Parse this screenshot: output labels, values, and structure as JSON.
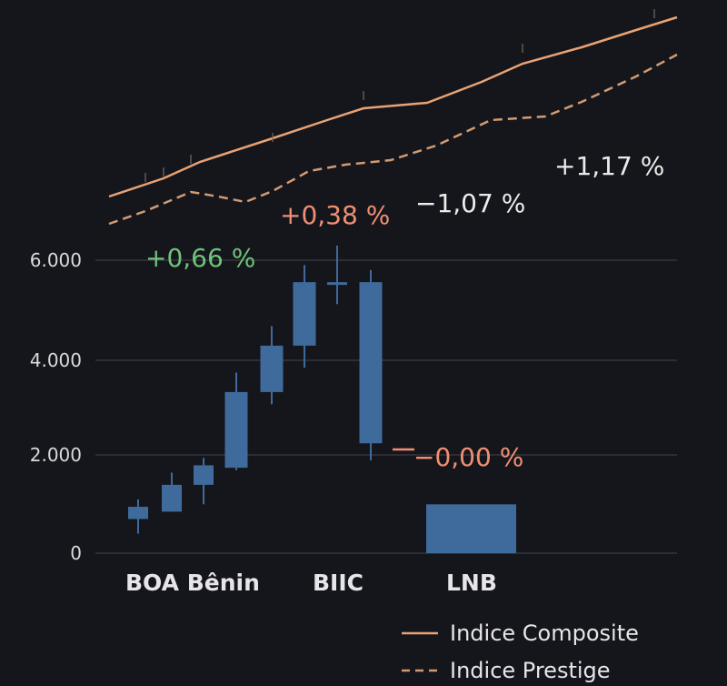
{
  "colors": {
    "background": "#15161b",
    "grid": "#3a3c44",
    "candle": "#3f6b9c",
    "composite_line": "#e8a274",
    "prestige_line": "#d19b74",
    "positive": "#6ec27a",
    "negative": "#f08f72",
    "neutral": "#ececec"
  },
  "chart_data": {
    "type": "candlestick",
    "y_ticks": [
      "6.000",
      "4.000",
      "2.000",
      "0"
    ],
    "ylim": [
      0,
      6000
    ],
    "grid": true,
    "categories": [
      "BOA Bênin",
      "BIIC",
      "LNB"
    ],
    "candles": [
      {
        "open": 700,
        "close": 950,
        "high": 1100,
        "low": 400
      },
      {
        "open": 850,
        "close": 1400,
        "high": 1650,
        "low": 850
      },
      {
        "open": 1400,
        "close": 1800,
        "high": 1950,
        "low": 1000
      },
      {
        "open": 1750,
        "close": 3300,
        "high": 3700,
        "low": 1700
      },
      {
        "open": 3300,
        "close": 4250,
        "high": 4650,
        "low": 3050
      },
      {
        "open": 4250,
        "close": 5550,
        "high": 5900,
        "low": 3800
      },
      {
        "open": 5550,
        "close": 5500,
        "high": 6300,
        "low": 5100
      },
      {
        "open": 5550,
        "close": 2250,
        "high": 5800,
        "low": 1900
      }
    ],
    "bar": {
      "category": "LNB",
      "value": 1000
    },
    "series": [
      {
        "name": "Indice Composite",
        "style": "solid"
      },
      {
        "name": "Indice Prestige",
        "style": "dashed"
      }
    ],
    "annotations": [
      {
        "text": "+0,66 %",
        "color": "positive"
      },
      {
        "text": "+0,38 %",
        "color": "negative"
      },
      {
        "text": "−1,07 %",
        "color": "neutral"
      },
      {
        "text": "+1,17 %",
        "color": "neutral"
      },
      {
        "text": "−0,00 %",
        "color": "negative"
      }
    ],
    "legend": {
      "position": "bottom-right"
    }
  }
}
